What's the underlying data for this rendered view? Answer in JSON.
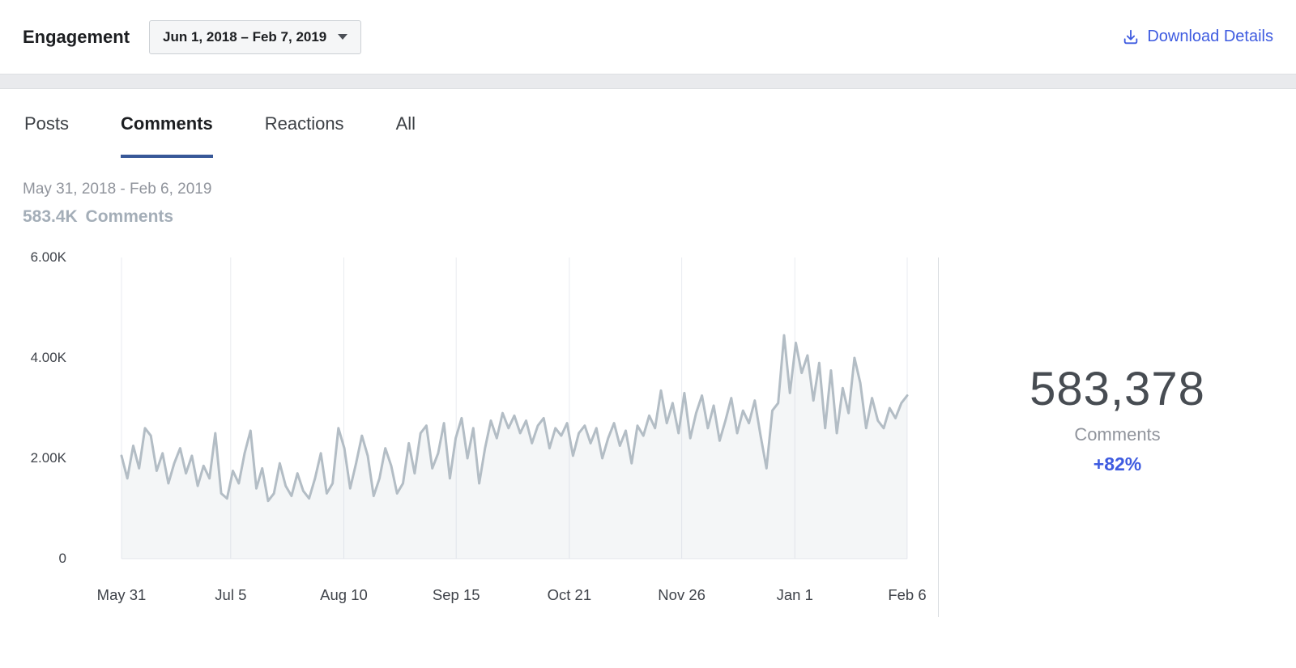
{
  "header": {
    "title": "Engagement",
    "date_range_button": "Jun 1, 2018 – Feb 7, 2019",
    "download_label": "Download Details"
  },
  "tabs": [
    {
      "label": "Posts",
      "active": false
    },
    {
      "label": "Comments",
      "active": true
    },
    {
      "label": "Reactions",
      "active": false
    },
    {
      "label": "All",
      "active": false
    }
  ],
  "summary": {
    "date_range": "May 31, 2018 - Feb 6, 2019",
    "total_label": "583.4K Comments"
  },
  "stat": {
    "value": "583,378",
    "label": "Comments",
    "change": "+82%"
  },
  "colors": {
    "accent_blue": "#3e5be0",
    "tab_underline": "#385898",
    "line": "#b3bdc5",
    "area": "rgba(177,188,196,0.14)",
    "grid": "#e9ebf0"
  },
  "chart_data": {
    "type": "line",
    "title": "583.4K Comments",
    "xlabel": "",
    "ylabel": "",
    "x_range": [
      "May 31, 2018",
      "Feb 6, 2019"
    ],
    "ylim": [
      0,
      6000
    ],
    "grid": "vertical-only",
    "legend": "none",
    "y_ticks": [
      {
        "label": "6.00K",
        "value": 6000
      },
      {
        "label": "4.00K",
        "value": 4000
      },
      {
        "label": "2.00K",
        "value": 2000
      },
      {
        "label": "0",
        "value": 0
      }
    ],
    "x_ticks": [
      {
        "label": "May 31",
        "t": 0.0
      },
      {
        "label": "Jul 5",
        "t": 0.139
      },
      {
        "label": "Aug 10",
        "t": 0.283
      },
      {
        "label": "Sep 15",
        "t": 0.426
      },
      {
        "label": "Oct 21",
        "t": 0.57
      },
      {
        "label": "Nov 26",
        "t": 0.713
      },
      {
        "label": "Jan 1",
        "t": 0.857
      },
      {
        "label": "Feb 6",
        "t": 1.0
      }
    ],
    "values": [
      2050,
      1600,
      2250,
      1800,
      2600,
      2450,
      1750,
      2100,
      1500,
      1900,
      2200,
      1700,
      2050,
      1450,
      1850,
      1600,
      2500,
      1300,
      1200,
      1750,
      1500,
      2100,
      2550,
      1400,
      1800,
      1150,
      1300,
      1900,
      1450,
      1250,
      1700,
      1350,
      1200,
      1600,
      2100,
      1300,
      1500,
      2600,
      2200,
      1400,
      1900,
      2450,
      2050,
      1250,
      1600,
      2200,
      1850,
      1300,
      1500,
      2300,
      1700,
      2500,
      2650,
      1800,
      2100,
      2700,
      1600,
      2400,
      2800,
      2000,
      2600,
      1500,
      2200,
      2750,
      2400,
      2900,
      2600,
      2850,
      2500,
      2750,
      2300,
      2650,
      2800,
      2200,
      2600,
      2450,
      2700,
      2050,
      2500,
      2650,
      2300,
      2600,
      2000,
      2400,
      2700,
      2250,
      2550,
      1900,
      2650,
      2450,
      2850,
      2600,
      3350,
      2700,
      3100,
      2500,
      3300,
      2400,
      2900,
      3250,
      2600,
      3050,
      2350,
      2750,
      3200,
      2500,
      2950,
      2700,
      3150,
      2450,
      1800,
      2950,
      3100,
      4450,
      3300,
      4300,
      3700,
      4050,
      3150,
      3900,
      2600,
      3750,
      2500,
      3400,
      2900,
      4000,
      3500,
      2600,
      3200,
      2750,
      2600,
      3000,
      2800,
      3100,
      3250
    ]
  }
}
